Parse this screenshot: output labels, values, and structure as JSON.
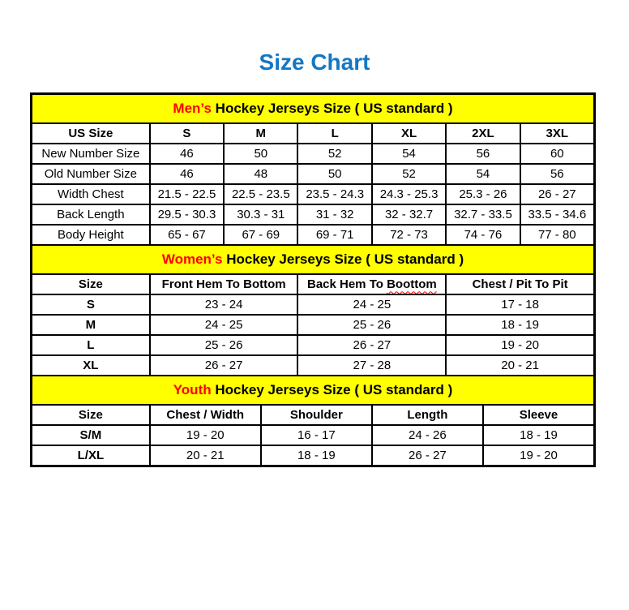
{
  "page": {
    "title": "Size Chart"
  },
  "colors": {
    "title_text": "#1477C3",
    "section_header_bg": "#FFFF00",
    "section_highlight_text": "#FF0000",
    "table_text": "#000000",
    "table_border": "#000000",
    "background": "#FFFFFF"
  },
  "chart_data": [
    {
      "type": "table",
      "name": "mens",
      "section_title": {
        "highlight": "Men’s",
        "rest": " Hockey Jerseys Size ( US standard )"
      },
      "columns": [
        "US Size",
        "S",
        "M",
        "L",
        "XL",
        "2XL",
        "3XL"
      ],
      "bold_row_labels": false,
      "rows": [
        [
          "New Number Size",
          "46",
          "50",
          "52",
          "54",
          "56",
          "60"
        ],
        [
          "Old Number Size",
          "46",
          "48",
          "50",
          "52",
          "54",
          "56"
        ],
        [
          "Width Chest",
          "21.5 - 22.5",
          "22.5 - 23.5",
          "23.5 - 24.3",
          "24.3 - 25.3",
          "25.3 - 26",
          "26 - 27"
        ],
        [
          "Back Length",
          "29.5 - 30.3",
          "30.3 - 31",
          "31 - 32",
          "32 - 32.7",
          "32.7 - 33.5",
          "33.5 - 34.6"
        ],
        [
          "Body Height",
          "65 - 67",
          "67 - 69",
          "69 - 71",
          "72 - 73",
          "74 - 76",
          "77 - 80"
        ]
      ]
    },
    {
      "type": "table",
      "name": "womens",
      "section_title": {
        "highlight": "Women’s",
        "rest": " Hockey Jerseys Size ( US standard )"
      },
      "columns": [
        "Size",
        "Front Hem To Bottom",
        "Back Hem To Boottom",
        "Chest / Pit To Pit"
      ],
      "squiggle": {
        "column": 2,
        "word": "Boottom"
      },
      "bold_row_labels": true,
      "rows": [
        [
          "S",
          "23 - 24",
          "24 - 25",
          "17 - 18"
        ],
        [
          "M",
          "24 - 25",
          "25 - 26",
          "18 - 19"
        ],
        [
          "L",
          "25 - 26",
          "26 - 27",
          "19 - 20"
        ],
        [
          "XL",
          "26 - 27",
          "27 - 28",
          "20 - 21"
        ]
      ]
    },
    {
      "type": "table",
      "name": "youth",
      "section_title": {
        "highlight": "Youth",
        "rest": " Hockey Jerseys Size ( US standard )"
      },
      "columns": [
        "Size",
        "Chest / Width",
        "Shoulder",
        "Length",
        "Sleeve"
      ],
      "bold_row_labels": true,
      "rows": [
        [
          "S/M",
          "19 - 20",
          "16 - 17",
          "24 - 26",
          "18 - 19"
        ],
        [
          "L/XL",
          "20 - 21",
          "18 - 19",
          "26 - 27",
          "19 - 20"
        ]
      ]
    }
  ]
}
